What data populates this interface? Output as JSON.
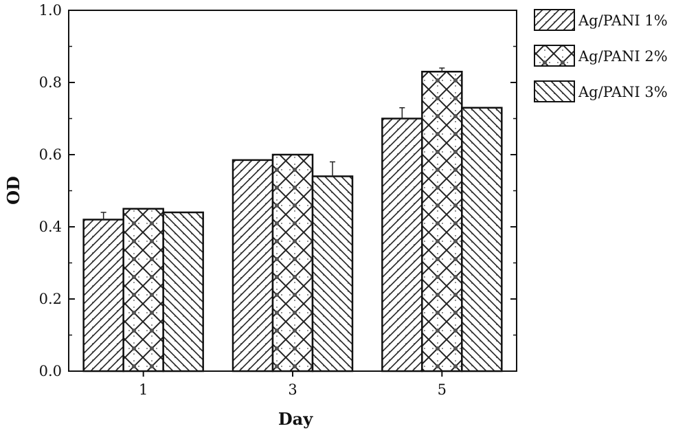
{
  "chart_data": {
    "type": "bar",
    "xlabel": "Day",
    "ylabel": "OD",
    "categories": [
      "1",
      "3",
      "5"
    ],
    "ylim": [
      0.0,
      1.0
    ],
    "yticks": [
      "0.0",
      "0.2",
      "0.4",
      "0.6",
      "0.8",
      "1.0"
    ],
    "grid": false,
    "legend_position": "outside-top-right",
    "series": [
      {
        "name": "Ag/PANI 1%",
        "values": [
          0.42,
          0.585,
          0.7
        ],
        "error": [
          0.02,
          0.0,
          0.03
        ],
        "pattern": "diagonal-right"
      },
      {
        "name": "Ag/PANI 2%",
        "values": [
          0.45,
          0.6,
          0.83
        ],
        "error": [
          0.0,
          0.0,
          0.01
        ],
        "pattern": "crosshatch"
      },
      {
        "name": "Ag/PANI 3%",
        "values": [
          0.44,
          0.54,
          0.73
        ],
        "error": [
          0.0,
          0.04,
          0.0
        ],
        "pattern": "diagonal-left"
      }
    ]
  }
}
